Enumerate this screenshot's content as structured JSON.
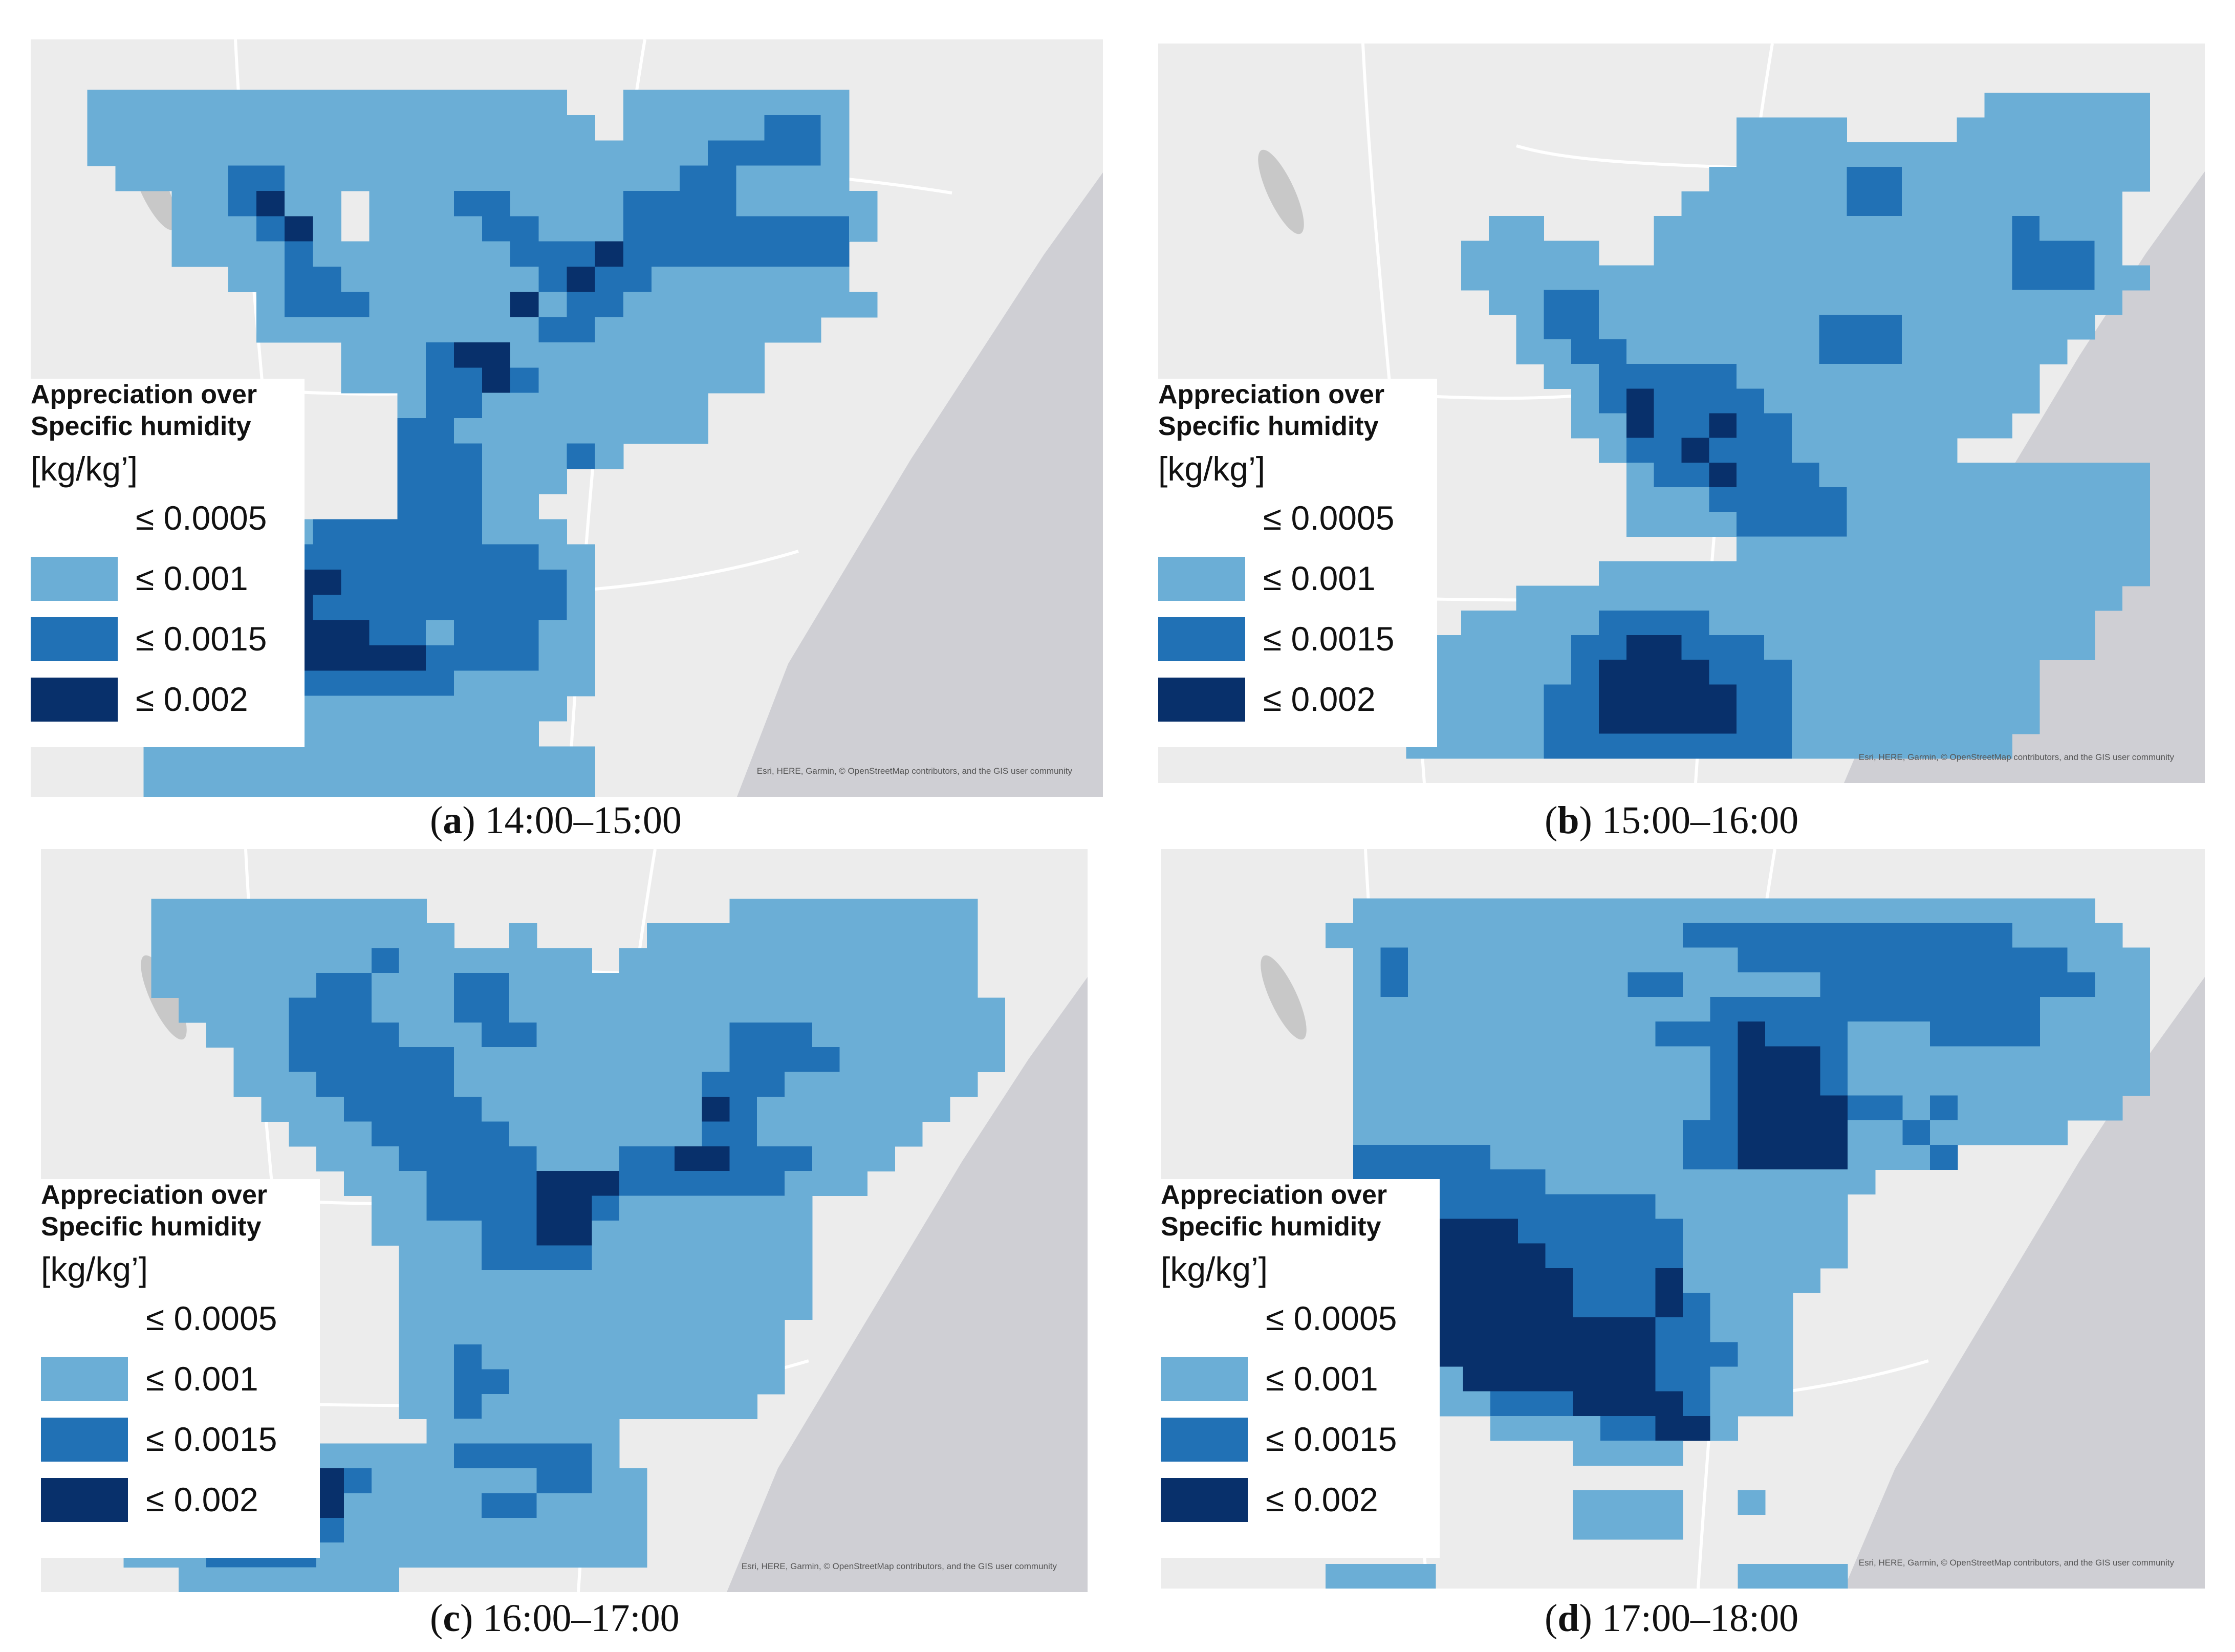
{
  "colors": {
    "map_bg": "#e8e8e8",
    "land": "#eeeeee",
    "sea": "#cfcfd4",
    "c1": "#6baed6",
    "c2": "#2171b5",
    "c3": "#08306b"
  },
  "legend": {
    "title_line1": "Appreciation over",
    "title_line2": "Specific humidity",
    "unit": "[kg/kg’]",
    "classes": [
      {
        "label": "≤ 0.0005",
        "color": "none"
      },
      {
        "label": "≤ 0.001",
        "color": "#6baed6"
      },
      {
        "label": "≤ 0.0015",
        "color": "#2171b5"
      },
      {
        "label": "≤ 0.002",
        "color": "#08306b"
      }
    ]
  },
  "attribution": "Esri, HERE, Garmin, © OpenStreetMap contributors, and the GIS user community",
  "panels": [
    {
      "letter": "a",
      "time": "14:00–15:00",
      "grid": [
        "00000000000000000000000000000000000000",
        "00000000000000000000000000000000000000",
        "00111111111111111110011111111000000000",
        "00111111111111111111011111221000000000",
        "00111111111111111111111122221000000000",
        "00011112211111111111111221111000000000",
        "00000112311011122111122221111100000000",
        "00000111231011112211122222222100000000",
        "00000111121111111222322222222000000000",
        "00000001122111111123221111111000000000",
        "00000000122211111312211111111100000000",
        "00000000111111111122111111110000000000",
        "00000000000111233111111111000000000000",
        "00000000000111223211111111000000000000",
        "00000000000001221111111100000000000000",
        "00000000000002211111111100000000000000",
        "00000000000002221112100000000000000000",
        "00000000000002221110000000000000000000",
        "00011000000002221100000000000000000000",
        "00111111112222221110000000000000000000",
        "01112222222222222211000000000000000000",
        "02233333333222222221000000000000000000",
        "02233333332222222221000000000000000000",
        "02333333333322122211000000000000000000",
        "01112222333333222211000000000000000000",
        "01122221122222211111000000000000000000",
        "00011111111111111110000000000000000000",
        "00001111111111111100000000000000000000",
        "00001111111111111111000000000000000000",
        "00001111111111111111000000000000000000"
      ]
    },
    {
      "letter": "b",
      "time": "15:00–16:00",
      "grid": [
        "00000000000000000000000000000000000000",
        "00000000000000000000000000000000000000",
        "00000000000000000000000000000011111100",
        "00000000000000000000011110000111111100",
        "00000000000000000000011111111111111100",
        "00000000000000000000111112211111111100",
        "00000000000000000001111112211111111000",
        "00000000000011000011111111111112111000",
        "00000000000111110011111111111112221000",
        "00000000000111111111111111111112221100",
        "00000000000011221111111111111111111000",
        "00000000000001221111111122211111110000",
        "00000000000001122111111122211111100000",
        "00000000000000112222211111111111000000",
        "00000000000000012322221111111111000000",
        "00000000000000011322322111111110000000",
        "00000000000000001223222111111000000000",
        "00000000000000000122322211111111111100",
        "00000000000000000111222221111111111100",
        "00000000000000000111122221111111111100",
        "00000000000000000000011111111111111100",
        "00000000000000001111111111111111111100",
        "00000000000001111111111111111111111000",
        "00000000000111112222111111111111110000",
        "00000000011111122332221111111111110000",
        "00000000111111123333222111111111000000",
        "00000000111111223333322111111111000000",
        "00000000011111223333322111111111000000",
        "00000000011111222222222111111110000000",
        "00000000000000000000000000000000000000"
      ]
    },
    {
      "letter": "c",
      "time": "16:00–17:00",
      "grid": [
        "00000000000000000000000000000000000000",
        "00000000000000000000000000000000000000",
        "00001111111111000000000001111111110000",
        "00001111111111100100001111111111110000",
        "00001111111121111111011111111111110000",
        "00001111112211122111111111111111110000",
        "00000111122211122111111111111111111000",
        "00000011122221112211111112221111111000",
        "00000001122222211111111112222111111000",
        "00000001112222211111111122211111110000",
        "00000000111222221111111132111111100000",
        "00000000011122222111111122111111000000",
        "00000000001112222211122332221110000000",
        "00000000000111222233322222211100000000",
        "00000000000011222233211111110000000000",
        "00000000000011112233111111110000000000",
        "00000000000001112222111111110000000000",
        "00000000000001111111111111110000000000",
        "00000000000001111111111111110000000000",
        "00000000000001111111111111100000000000",
        "00000000000001121111111111100000000000",
        "00000000000001122111111111100000000000",
        "00000000000001121111111111000000000000",
        "00001111000000111111100000000000000000",
        "00011223331111122222100000000000000000",
        "00011223333211111122110000000000000000",
        "00011233333111112211110000000000000000",
        "00011233322111111111110000000000000000",
        "00011122221111111111110000000000000000",
        "00000111111110000000000000000000000000"
      ]
    },
    {
      "letter": "d",
      "time": "17:00–18:00",
      "grid": [
        "00000000000000000000000000000000000000",
        "00000000000000000000000000000000000000",
        "00000001111111111111111111111111110000",
        "00000011111111111112222222222221111000",
        "00000001211111111111122222222222211100",
        "00000001211111111221111122222222221100",
        "00000001111111111111222222222222111100",
        "00000001111111111122232221112222111100",
        "00000001111111111111233321111111111100",
        "00000001111111111111233321111111111100",
        "00000001111111111111233332212111111000",
        "00000001111111111112233331121111100000",
        "00000002222211111112233331112000000000",
        "00000002222222111111111111000000000000",
        "00000003322222222211111110000000000000",
        "00000003333332222221111110000000000000",
        "00000003333333222221111110000000000000",
        "00000003333333322231111100000000000000",
        "00000002333333322232111000000000000000",
        "00000001233333333322111000000000000000",
        "00000001123333333322211000000000000000",
        "00000000111333333322111000000000000000",
        "00000000001122233332111000000000000000",
        "00000000000011112233100000000000000000",
        "00000000000000011110000000000000000000",
        "00000000000000000000000000000000000000",
        "00000000000000011110010000000000000000",
        "00000000000000011110000000000000000000",
        "00000000000000000000000000000000000000",
        "00000011110000000000011110000000000000"
      ]
    }
  ]
}
